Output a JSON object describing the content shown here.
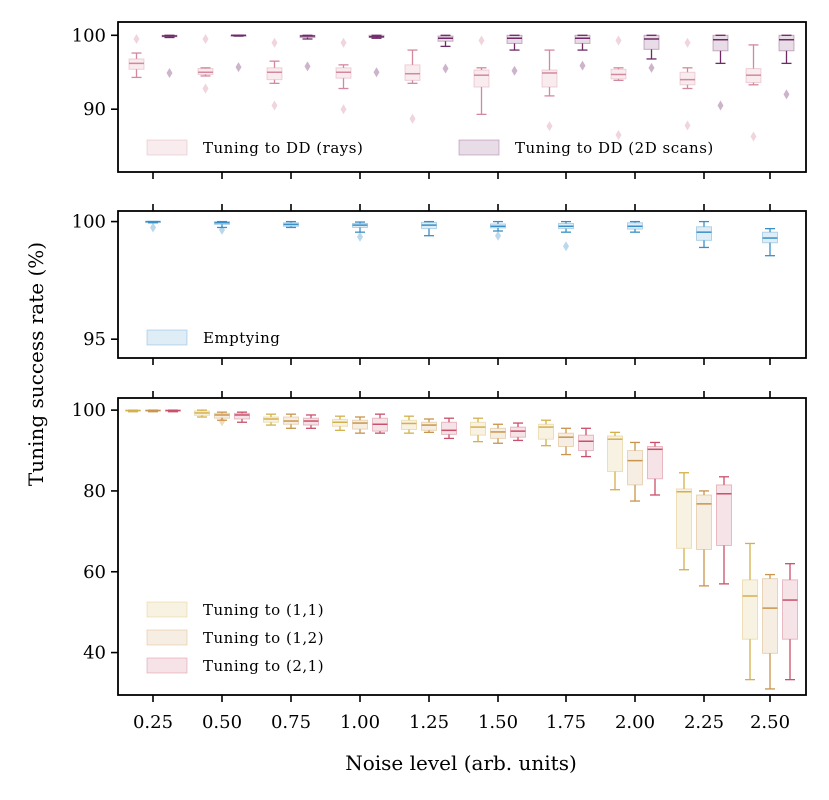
{
  "colors": {
    "rays": "#d4889e",
    "scans": "#6e2a67",
    "emptying": "#3a8fc6",
    "t11": "#d4b04c",
    "t12": "#c9944c",
    "t21": "#c9506a"
  },
  "chart_data": {
    "type": "box",
    "xlabel": "Noise level (arb. units)",
    "ylabel": "Tuning success rate (%)",
    "categories": [
      "0.25",
      "0.50",
      "0.75",
      "1.00",
      "1.25",
      "1.50",
      "1.75",
      "2.00",
      "2.25",
      "2.50"
    ],
    "panels": [
      {
        "id": "dd",
        "ylim": [
          81.5,
          101.8
        ],
        "yticks": [
          90,
          100
        ],
        "ytick_labels": [
          "90",
          "100"
        ],
        "legend": {
          "placement": "lower-center",
          "columns": 2
        },
        "series": [
          {
            "name": "Tuning to DD (rays)",
            "color_key": "rays",
            "boxes": [
              {
                "wlo": 94.3,
                "q1": 95.4,
                "med": 96.2,
                "q3": 96.8,
                "whi": 97.6,
                "fliers": [
                  99.5
                ]
              },
              {
                "wlo": 94.5,
                "q1": 94.7,
                "med": 95.0,
                "q3": 95.5,
                "whi": 95.6,
                "fliers": [
                  99.5,
                  92.8
                ]
              },
              {
                "wlo": 93.5,
                "q1": 94.0,
                "med": 95.0,
                "q3": 95.6,
                "whi": 96.5,
                "fliers": [
                  99.0,
                  90.5
                ]
              },
              {
                "wlo": 92.8,
                "q1": 94.2,
                "med": 95.0,
                "q3": 95.6,
                "whi": 96.0,
                "fliers": [
                  99.0,
                  90.0
                ]
              },
              {
                "wlo": 93.5,
                "q1": 93.9,
                "med": 94.8,
                "q3": 96.0,
                "whi": 98.0,
                "fliers": [
                  88.7
                ]
              },
              {
                "wlo": 89.3,
                "q1": 93.0,
                "med": 94.6,
                "q3": 95.3,
                "whi": 95.6,
                "fliers": [
                  99.3
                ]
              },
              {
                "wlo": 91.8,
                "q1": 93.0,
                "med": 94.9,
                "q3": 95.3,
                "whi": 98.0,
                "fliers": [
                  87.7
                ]
              },
              {
                "wlo": 93.9,
                "q1": 94.1,
                "med": 94.7,
                "q3": 95.4,
                "whi": 95.6,
                "fliers": [
                  99.3,
                  86.5
                ]
              },
              {
                "wlo": 92.8,
                "q1": 93.3,
                "med": 94.0,
                "q3": 95.0,
                "whi": 95.6,
                "fliers": [
                  99.0,
                  87.8
                ]
              },
              {
                "wlo": 93.3,
                "q1": 93.6,
                "med": 94.6,
                "q3": 95.5,
                "whi": 98.7,
                "fliers": [
                  86.3
                ]
              }
            ]
          },
          {
            "name": "Tuning to DD (2D scans)",
            "color_key": "scans",
            "boxes": [
              {
                "wlo": 99.7,
                "q1": 99.8,
                "med": 99.9,
                "q3": 100.0,
                "whi": 100.0,
                "fliers": [
                  94.9
                ]
              },
              {
                "wlo": 99.9,
                "q1": 100.0,
                "med": 100.0,
                "q3": 100.0,
                "whi": 100.0,
                "fliers": [
                  95.7
                ]
              },
              {
                "wlo": 99.5,
                "q1": 99.7,
                "med": 99.9,
                "q3": 100.0,
                "whi": 100.0,
                "fliers": [
                  95.8
                ]
              },
              {
                "wlo": 99.6,
                "q1": 99.7,
                "med": 99.8,
                "q3": 100.0,
                "whi": 100.0,
                "fliers": [
                  95.0
                ]
              },
              {
                "wlo": 98.5,
                "q1": 99.2,
                "med": 99.6,
                "q3": 99.9,
                "whi": 100.0,
                "fliers": [
                  95.5
                ]
              },
              {
                "wlo": 98.0,
                "q1": 98.9,
                "med": 99.6,
                "q3": 100.0,
                "whi": 100.0,
                "fliers": [
                  95.2
                ]
              },
              {
                "wlo": 98.0,
                "q1": 98.9,
                "med": 99.6,
                "q3": 100.0,
                "whi": 100.0,
                "fliers": [
                  95.9
                ]
              },
              {
                "wlo": 96.8,
                "q1": 98.1,
                "med": 99.5,
                "q3": 100.0,
                "whi": 100.0,
                "fliers": [
                  95.6
                ]
              },
              {
                "wlo": 96.2,
                "q1": 97.9,
                "med": 99.4,
                "q3": 100.0,
                "whi": 100.0,
                "fliers": [
                  90.5
                ]
              },
              {
                "wlo": 96.2,
                "q1": 97.9,
                "med": 99.4,
                "q3": 100.0,
                "whi": 100.0,
                "fliers": [
                  92.0
                ]
              }
            ]
          }
        ]
      },
      {
        "id": "empty",
        "ylim": [
          94.2,
          100.45
        ],
        "yticks": [
          95,
          100
        ],
        "ytick_labels": [
          "95",
          "100"
        ],
        "legend": {
          "placement": "lower-left",
          "columns": 1
        },
        "series": [
          {
            "name": "Emptying",
            "color_key": "emptying",
            "boxes": [
              {
                "wlo": 99.95,
                "q1": 99.97,
                "med": 100.0,
                "q3": 100.0,
                "whi": 100.0,
                "fliers": [
                  99.75
                ]
              },
              {
                "wlo": 99.75,
                "q1": 99.88,
                "med": 99.95,
                "q3": 100.0,
                "whi": 100.0,
                "fliers": [
                  99.65
                ]
              },
              {
                "wlo": 99.75,
                "q1": 99.8,
                "med": 99.88,
                "q3": 99.95,
                "whi": 100.0,
                "fliers": []
              },
              {
                "wlo": 99.55,
                "q1": 99.75,
                "med": 99.85,
                "q3": 99.92,
                "whi": 99.98,
                "fliers": [
                  99.35
                ]
              },
              {
                "wlo": 99.4,
                "q1": 99.7,
                "med": 99.85,
                "q3": 99.97,
                "whi": 100.0,
                "fliers": []
              },
              {
                "wlo": 99.6,
                "q1": 99.73,
                "med": 99.8,
                "q3": 99.9,
                "whi": 100.0,
                "fliers": [
                  99.4
                ]
              },
              {
                "wlo": 99.55,
                "q1": 99.7,
                "med": 99.8,
                "q3": 99.92,
                "whi": 100.0,
                "fliers": [
                  98.95
                ]
              },
              {
                "wlo": 99.55,
                "q1": 99.68,
                "med": 99.8,
                "q3": 99.95,
                "whi": 100.0,
                "fliers": []
              },
              {
                "wlo": 98.9,
                "q1": 99.2,
                "med": 99.55,
                "q3": 99.78,
                "whi": 100.0,
                "fliers": []
              },
              {
                "wlo": 98.55,
                "q1": 99.1,
                "med": 99.3,
                "q3": 99.55,
                "whi": 99.7,
                "fliers": []
              }
            ]
          }
        ]
      },
      {
        "id": "tuning",
        "ylim": [
          29.5,
          103
        ],
        "yticks": [
          40,
          60,
          80,
          100
        ],
        "ytick_labels": [
          "40",
          "60",
          "80",
          "100"
        ],
        "legend": {
          "placement": "lower-left",
          "columns": 1
        },
        "series": [
          {
            "name": "Tuning to (1,1)",
            "color_key": "t11",
            "boxes": [
              {
                "wlo": 99.6,
                "q1": 99.8,
                "med": 99.9,
                "q3": 100.0,
                "whi": 100.0,
                "fliers": []
              },
              {
                "wlo": 98.3,
                "q1": 98.7,
                "med": 99.3,
                "q3": 99.8,
                "whi": 100.0,
                "fliers": []
              },
              {
                "wlo": 96.3,
                "q1": 97.0,
                "med": 97.8,
                "q3": 98.3,
                "whi": 99.0,
                "fliers": []
              },
              {
                "wlo": 95.0,
                "q1": 96.0,
                "med": 97.0,
                "q3": 97.7,
                "whi": 98.5,
                "fliers": []
              },
              {
                "wlo": 94.3,
                "q1": 95.2,
                "med": 96.7,
                "q3": 97.5,
                "whi": 98.5,
                "fliers": []
              },
              {
                "wlo": 92.2,
                "q1": 93.8,
                "med": 95.8,
                "q3": 97.0,
                "whi": 98.0,
                "fliers": []
              },
              {
                "wlo": 91.2,
                "q1": 92.8,
                "med": 95.8,
                "q3": 96.5,
                "whi": 97.5,
                "fliers": []
              },
              {
                "wlo": 80.3,
                "q1": 84.8,
                "med": 92.8,
                "q3": 93.6,
                "whi": 94.5,
                "fliers": []
              },
              {
                "wlo": 60.5,
                "q1": 65.8,
                "med": 79.8,
                "q3": 80.5,
                "whi": 84.5,
                "fliers": []
              },
              {
                "wlo": 33.3,
                "q1": 43.3,
                "med": 54.0,
                "q3": 58.0,
                "whi": 67.0,
                "fliers": []
              }
            ]
          },
          {
            "name": "Tuning to (1,2)",
            "color_key": "t12",
            "boxes": [
              {
                "wlo": 99.6,
                "q1": 99.8,
                "med": 99.9,
                "q3": 100.0,
                "whi": 100.0,
                "fliers": []
              },
              {
                "wlo": 97.5,
                "q1": 98.0,
                "med": 98.8,
                "q3": 99.2,
                "whi": 99.5,
                "fliers": [
                  97.2
                ]
              },
              {
                "wlo": 95.5,
                "q1": 96.5,
                "med": 97.3,
                "q3": 98.3,
                "whi": 99.0,
                "fliers": []
              },
              {
                "wlo": 94.3,
                "q1": 95.3,
                "med": 96.8,
                "q3": 97.5,
                "whi": 98.3,
                "fliers": []
              },
              {
                "wlo": 94.5,
                "q1": 95.0,
                "med": 96.3,
                "q3": 97.0,
                "whi": 97.8,
                "fliers": []
              },
              {
                "wlo": 91.8,
                "q1": 93.0,
                "med": 94.6,
                "q3": 95.5,
                "whi": 96.5,
                "fliers": []
              },
              {
                "wlo": 89.0,
                "q1": 91.0,
                "med": 93.3,
                "q3": 94.3,
                "whi": 95.5,
                "fliers": []
              },
              {
                "wlo": 77.5,
                "q1": 81.5,
                "med": 87.5,
                "q3": 90.0,
                "whi": 92.0,
                "fliers": []
              },
              {
                "wlo": 56.5,
                "q1": 65.5,
                "med": 76.8,
                "q3": 79.0,
                "whi": 80.0,
                "fliers": []
              },
              {
                "wlo": 31.0,
                "q1": 39.8,
                "med": 51.0,
                "q3": 58.3,
                "whi": 59.3,
                "fliers": []
              }
            ]
          },
          {
            "name": "Tuning to (2,1)",
            "color_key": "t21",
            "boxes": [
              {
                "wlo": 99.6,
                "q1": 99.8,
                "med": 99.9,
                "q3": 100.0,
                "whi": 100.0,
                "fliers": []
              },
              {
                "wlo": 97.0,
                "q1": 97.8,
                "med": 98.8,
                "q3": 99.2,
                "whi": 99.5,
                "fliers": []
              },
              {
                "wlo": 95.5,
                "q1": 96.3,
                "med": 97.3,
                "q3": 98.0,
                "whi": 98.8,
                "fliers": []
              },
              {
                "wlo": 94.3,
                "q1": 94.8,
                "med": 96.5,
                "q3": 98.0,
                "whi": 99.0,
                "fliers": []
              },
              {
                "wlo": 93.0,
                "q1": 94.0,
                "med": 95.0,
                "q3": 97.0,
                "whi": 98.0,
                "fliers": []
              },
              {
                "wlo": 92.5,
                "q1": 93.3,
                "med": 94.8,
                "q3": 95.8,
                "whi": 96.8,
                "fliers": []
              },
              {
                "wlo": 88.5,
                "q1": 90.0,
                "med": 92.3,
                "q3": 93.8,
                "whi": 95.5,
                "fliers": []
              },
              {
                "wlo": 79.0,
                "q1": 83.0,
                "med": 90.3,
                "q3": 91.0,
                "whi": 92.0,
                "fliers": []
              },
              {
                "wlo": 57.0,
                "q1": 66.5,
                "med": 79.3,
                "q3": 81.5,
                "whi": 83.5,
                "fliers": []
              },
              {
                "wlo": 33.3,
                "q1": 43.3,
                "med": 53.0,
                "q3": 58.0,
                "whi": 62.0,
                "fliers": []
              }
            ]
          }
        ]
      }
    ]
  }
}
